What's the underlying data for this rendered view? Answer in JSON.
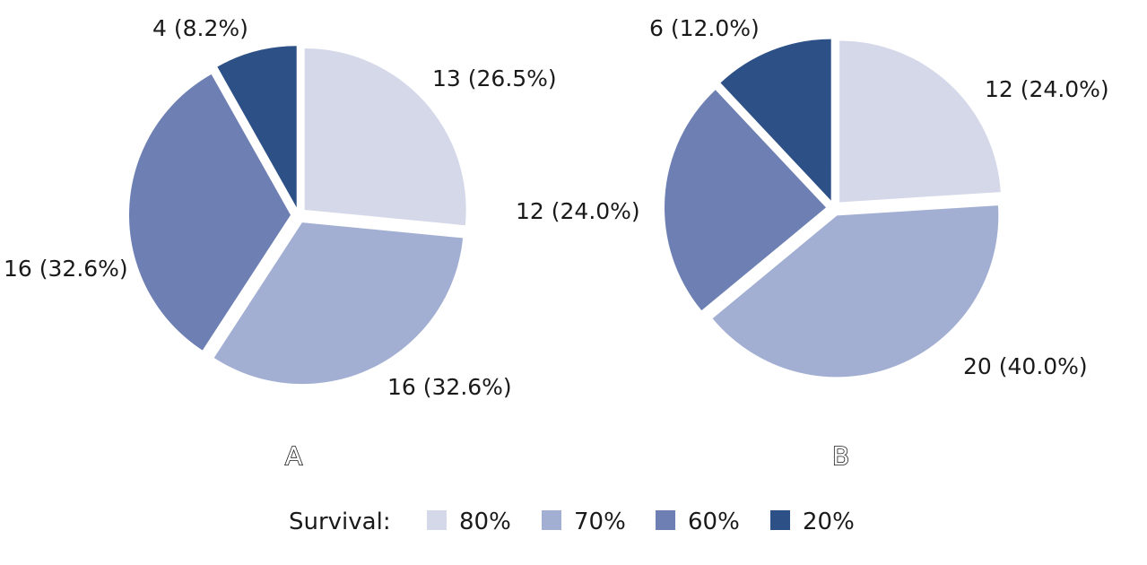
{
  "chart_data": [
    {
      "type": "pie",
      "panel_label": "A",
      "categories": [
        "80%",
        "70%",
        "60%",
        "20%"
      ],
      "values": [
        13,
        16,
        16,
        4
      ],
      "labels": [
        "13 (26.5%)",
        "16 (32.6%)",
        "16 (32.6%)",
        "4 (8.2%)"
      ]
    },
    {
      "type": "pie",
      "panel_label": "B",
      "categories": [
        "80%",
        "70%",
        "60%",
        "20%"
      ],
      "values": [
        12,
        20,
        12,
        6
      ],
      "labels": [
        "12 (24.0%)",
        "20 (40.0%)",
        "12 (24.0%)",
        "6 (12.0%)"
      ]
    }
  ],
  "legend": {
    "title": "Survival:",
    "entries": [
      {
        "label": "80%",
        "color": "#d4d8e9"
      },
      {
        "label": "70%",
        "color": "#a2afd3"
      },
      {
        "label": "60%",
        "color": "#6e80b3"
      },
      {
        "label": "20%",
        "color": "#2d5086"
      }
    ]
  }
}
